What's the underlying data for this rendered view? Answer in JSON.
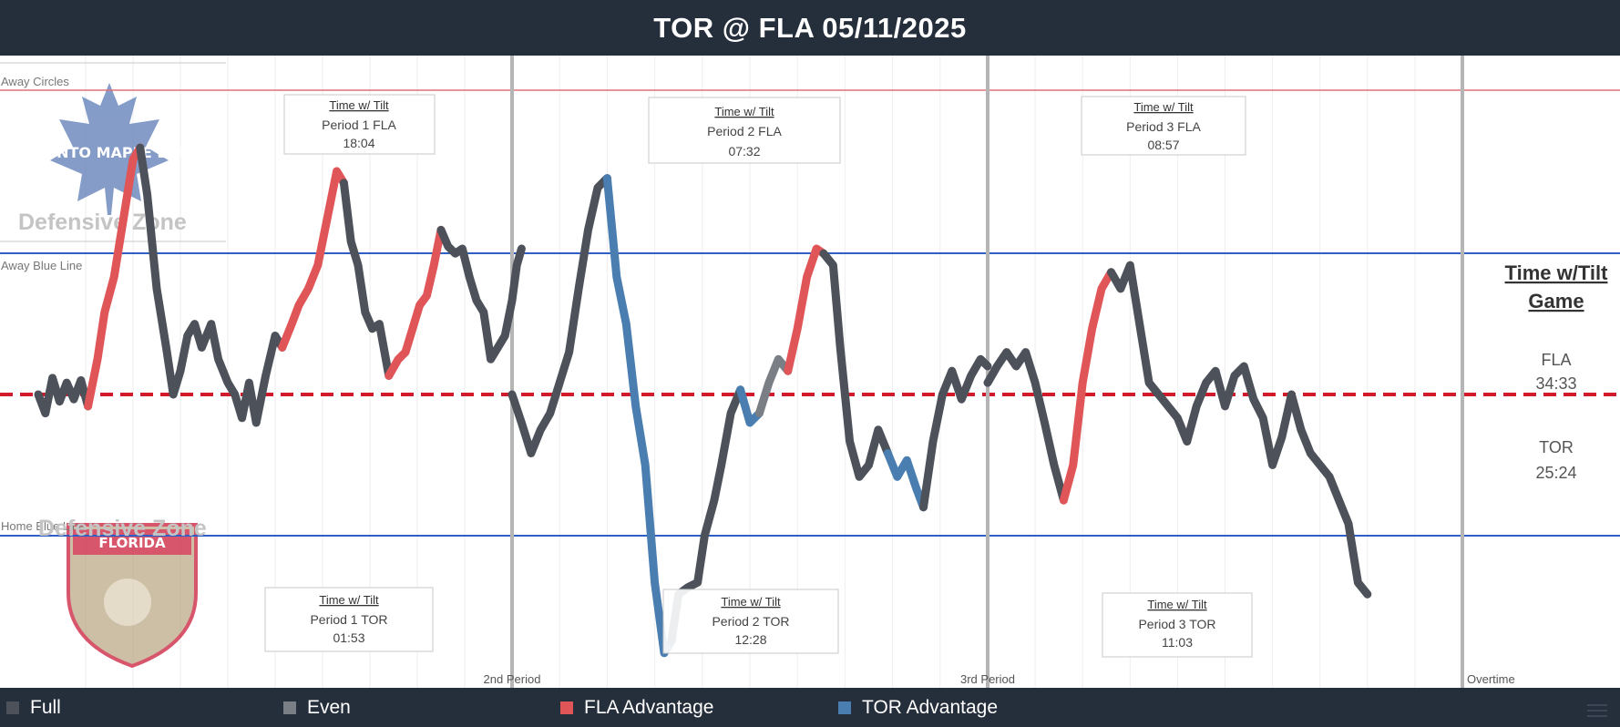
{
  "title": "TOR @ FLA 05/11/2025",
  "legend": [
    {
      "label": "Full",
      "color": "#4d525a"
    },
    {
      "label": "Even",
      "color": "#7a7f86"
    },
    {
      "label": "FLA Advantage",
      "color": "#e05557"
    },
    {
      "label": "TOR Advantage",
      "color": "#4a7eb0"
    }
  ],
  "zone_lines": {
    "away_circles": "Away Circles",
    "away_blue_line": "Away Blue Line",
    "home_blue_line": "Home Blue Line",
    "defensive_zone_top": "Defensive Zone",
    "defensive_zone_bottom": "Defensive Zone"
  },
  "period_labels": [
    "2nd Period",
    "3rd Period",
    "Overtime"
  ],
  "logos": {
    "top": "TORONTO MAPLE LEAFS",
    "bottom": "FLORIDA"
  },
  "tilt_boxes": [
    {
      "heading": "Time w/ Tilt",
      "label": "Period 1 FLA",
      "time": "18:04"
    },
    {
      "heading": "Time w/ Tilt",
      "label": "Period 2 FLA",
      "time": "07:32"
    },
    {
      "heading": "Time w/ Tilt",
      "label": "Period 3 FLA",
      "time": "08:57"
    },
    {
      "heading": "Time w/ Tilt",
      "label": "Period 1 TOR",
      "time": "01:53"
    },
    {
      "heading": "Time w/ Tilt",
      "label": "Period 2 TOR",
      "time": "12:28"
    },
    {
      "heading": "Time w/ Tilt",
      "label": "Period 3 TOR",
      "time": "11:03"
    }
  ],
  "game_summary": {
    "title_line1": "Time w/Tilt",
    "title_line2": "Game",
    "fla_label": "FLA",
    "fla_time": "34:33",
    "tor_label": "TOR",
    "tor_time": "25:24"
  },
  "colors": {
    "header_bg": "#252e3b",
    "neutral_line": "#d11a2a",
    "blue_line": "#2f5fc4",
    "away_circles_line": "#e0707a",
    "period_divider": "#b5b5b5",
    "full": "#4d525a",
    "even": "#7a7f86",
    "fla": "#e05557",
    "tor": "#4a7eb0"
  },
  "chart_data": {
    "type": "line",
    "x_unit": "game minutes",
    "y_unit": "ice tilt (zone position)",
    "xlim": [
      0,
      66
    ],
    "ylim": [
      -1.35,
      1.35
    ],
    "period_boundaries": [
      20,
      40,
      60
    ],
    "reference_lines": [
      {
        "name": "Away Circles",
        "y": 1.3
      },
      {
        "name": "Away Blue Line",
        "y": 0.6
      },
      {
        "name": "Neutral",
        "y": 0
      },
      {
        "name": "Home Blue Line",
        "y": -0.6
      }
    ],
    "segments": [
      {
        "state": "Full",
        "points": [
          [
            0,
            0
          ],
          [
            0.3,
            -0.08
          ],
          [
            0.6,
            0.07
          ],
          [
            0.9,
            -0.03
          ],
          [
            1.2,
            0.05
          ],
          [
            1.5,
            -0.02
          ],
          [
            1.8,
            0.06
          ],
          [
            2.1,
            -0.05
          ]
        ]
      },
      {
        "state": "FLA Advantage",
        "points": [
          [
            2.1,
            -0.05
          ],
          [
            2.5,
            0.15
          ],
          [
            2.8,
            0.35
          ],
          [
            3.2,
            0.5
          ],
          [
            3.6,
            0.75
          ],
          [
            4.0,
            1.0
          ],
          [
            4.3,
            1.05
          ]
        ]
      },
      {
        "state": "Full",
        "points": [
          [
            4.3,
            1.05
          ],
          [
            4.6,
            0.85
          ],
          [
            5.0,
            0.45
          ],
          [
            5.4,
            0.2
          ],
          [
            5.7,
            0
          ],
          [
            6.0,
            0.1
          ],
          [
            6.3,
            0.25
          ],
          [
            6.6,
            0.3
          ],
          [
            6.9,
            0.2
          ],
          [
            7.3,
            0.3
          ],
          [
            7.6,
            0.15
          ],
          [
            8.0,
            0.05
          ],
          [
            8.3,
            0
          ],
          [
            8.6,
            -0.1
          ],
          [
            8.9,
            0.05
          ],
          [
            9.2,
            -0.12
          ],
          [
            9.6,
            0.08
          ],
          [
            10.0,
            0.25
          ],
          [
            10.3,
            0.2
          ]
        ]
      },
      {
        "state": "FLA Advantage",
        "points": [
          [
            10.3,
            0.2
          ],
          [
            10.7,
            0.3
          ],
          [
            11.0,
            0.38
          ],
          [
            11.4,
            0.45
          ],
          [
            11.8,
            0.55
          ],
          [
            12.2,
            0.75
          ],
          [
            12.6,
            0.95
          ],
          [
            12.9,
            0.9
          ]
        ]
      },
      {
        "state": "Full",
        "points": [
          [
            12.9,
            0.9
          ],
          [
            13.2,
            0.65
          ],
          [
            13.5,
            0.55
          ],
          [
            13.8,
            0.35
          ],
          [
            14.1,
            0.28
          ],
          [
            14.4,
            0.3
          ],
          [
            14.8,
            0.08
          ]
        ]
      },
      {
        "state": "FLA Advantage",
        "points": [
          [
            14.8,
            0.08
          ],
          [
            15.2,
            0.15
          ],
          [
            15.5,
            0.18
          ],
          [
            15.8,
            0.28
          ],
          [
            16.1,
            0.38
          ],
          [
            16.4,
            0.42
          ],
          [
            16.7,
            0.55
          ],
          [
            17.0,
            0.7
          ]
        ]
      },
      {
        "state": "Full",
        "points": [
          [
            17.0,
            0.7
          ],
          [
            17.3,
            0.63
          ],
          [
            17.6,
            0.6
          ],
          [
            17.9,
            0.62
          ],
          [
            18.2,
            0.5
          ],
          [
            18.5,
            0.4
          ],
          [
            18.8,
            0.35
          ],
          [
            19.1,
            0.15
          ],
          [
            19.4,
            0.2
          ],
          [
            19.7,
            0.25
          ],
          [
            20.0,
            0.4
          ],
          [
            20.2,
            0.55
          ],
          [
            20.4,
            0.62
          ]
        ]
      },
      {
        "state": "Full",
        "points": [
          [
            20.0,
            0
          ],
          [
            20.4,
            -0.12
          ],
          [
            20.8,
            -0.25
          ],
          [
            21.2,
            -0.15
          ],
          [
            21.6,
            -0.08
          ],
          [
            22.0,
            0.05
          ],
          [
            22.4,
            0.18
          ],
          [
            22.8,
            0.45
          ],
          [
            23.2,
            0.7
          ],
          [
            23.6,
            0.88
          ],
          [
            24.0,
            0.92
          ]
        ]
      },
      {
        "state": "TOR Advantage",
        "points": [
          [
            24.0,
            0.92
          ],
          [
            24.4,
            0.5
          ],
          [
            24.8,
            0.3
          ],
          [
            25.2,
            -0.05
          ],
          [
            25.6,
            -0.3
          ],
          [
            26.0,
            -0.8
          ],
          [
            26.4,
            -1.1
          ],
          [
            26.7,
            -1.05
          ]
        ]
      },
      {
        "state": "Full",
        "points": [
          [
            26.7,
            -1.05
          ],
          [
            27.0,
            -0.85
          ],
          [
            27.4,
            -0.82
          ],
          [
            27.8,
            -0.8
          ],
          [
            28.1,
            -0.6
          ],
          [
            28.5,
            -0.45
          ],
          [
            28.8,
            -0.3
          ],
          [
            29.2,
            -0.08
          ],
          [
            29.6,
            0.02
          ]
        ]
      },
      {
        "state": "TOR Advantage",
        "points": [
          [
            29.6,
            0.02
          ],
          [
            30.0,
            -0.12
          ],
          [
            30.4,
            -0.08
          ]
        ]
      },
      {
        "state": "Even",
        "points": [
          [
            30.4,
            -0.08
          ],
          [
            30.8,
            0.05
          ],
          [
            31.2,
            0.15
          ],
          [
            31.6,
            0.1
          ]
        ]
      },
      {
        "state": "FLA Advantage",
        "points": [
          [
            31.6,
            0.1
          ],
          [
            32.0,
            0.28
          ],
          [
            32.4,
            0.5
          ],
          [
            32.8,
            0.62
          ],
          [
            33.1,
            0.6
          ]
        ]
      },
      {
        "state": "Full",
        "points": [
          [
            33.1,
            0.6
          ],
          [
            33.5,
            0.55
          ],
          [
            33.8,
            0.2
          ],
          [
            34.2,
            -0.2
          ],
          [
            34.6,
            -0.35
          ],
          [
            35.0,
            -0.3
          ],
          [
            35.4,
            -0.15
          ],
          [
            35.8,
            -0.25
          ]
        ]
      },
      {
        "state": "TOR Advantage",
        "points": [
          [
            35.8,
            -0.25
          ],
          [
            36.2,
            -0.35
          ],
          [
            36.6,
            -0.28
          ],
          [
            37.0,
            -0.4
          ],
          [
            37.3,
            -0.48
          ]
        ]
      },
      {
        "state": "Full",
        "points": [
          [
            37.3,
            -0.48
          ],
          [
            37.7,
            -0.2
          ],
          [
            38.1,
            0
          ],
          [
            38.5,
            0.1
          ],
          [
            38.9,
            -0.02
          ],
          [
            39.3,
            0.08
          ],
          [
            39.7,
            0.15
          ],
          [
            40.0,
            0.12
          ]
        ]
      },
      {
        "state": "Full",
        "points": [
          [
            40.0,
            0.05
          ],
          [
            40.4,
            0.12
          ],
          [
            40.8,
            0.18
          ],
          [
            41.2,
            0.12
          ],
          [
            41.6,
            0.18
          ],
          [
            42.0,
            0.05
          ],
          [
            42.4,
            -0.12
          ],
          [
            42.8,
            -0.3
          ],
          [
            43.2,
            -0.45
          ]
        ]
      },
      {
        "state": "FLA Advantage",
        "points": [
          [
            43.2,
            -0.45
          ],
          [
            43.6,
            -0.3
          ],
          [
            44.0,
            0.05
          ],
          [
            44.4,
            0.28
          ],
          [
            44.8,
            0.45
          ],
          [
            45.2,
            0.52
          ]
        ]
      },
      {
        "state": "Full",
        "points": [
          [
            45.2,
            0.52
          ],
          [
            45.6,
            0.45
          ],
          [
            46.0,
            0.55
          ],
          [
            46.4,
            0.3
          ],
          [
            46.8,
            0.05
          ],
          [
            47.2,
            0
          ],
          [
            47.6,
            -0.05
          ],
          [
            48.0,
            -0.1
          ],
          [
            48.4,
            -0.2
          ],
          [
            48.8,
            -0.05
          ],
          [
            49.2,
            0.05
          ],
          [
            49.6,
            0.1
          ],
          [
            50.0,
            -0.05
          ],
          [
            50.4,
            0.08
          ],
          [
            50.8,
            0.12
          ],
          [
            51.2,
            -0.02
          ],
          [
            51.6,
            -0.1
          ],
          [
            52.0,
            -0.3
          ],
          [
            52.4,
            -0.18
          ],
          [
            52.8,
            0
          ],
          [
            53.2,
            -0.15
          ],
          [
            53.6,
            -0.25
          ],
          [
            54.0,
            -0.3
          ],
          [
            54.4,
            -0.35
          ],
          [
            54.8,
            -0.45
          ],
          [
            55.2,
            -0.55
          ],
          [
            55.6,
            -0.8
          ],
          [
            56.0,
            -0.85
          ]
        ]
      }
    ]
  }
}
